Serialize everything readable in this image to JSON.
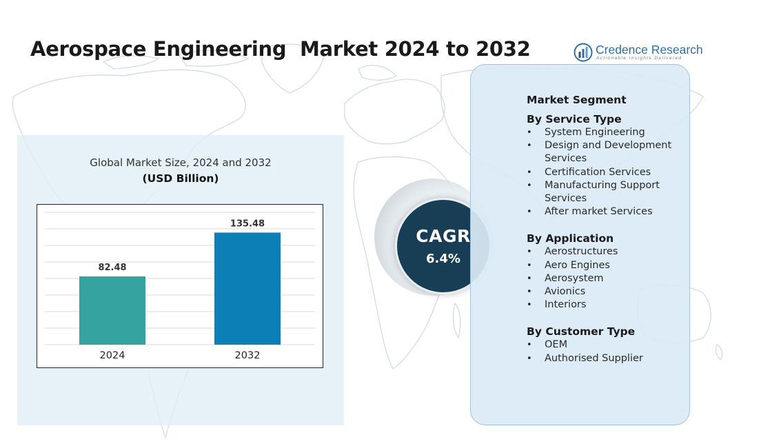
{
  "title": "Aerospace Engineering  Market 2024 to 2032",
  "logo": {
    "name": "Credence Research",
    "tagline": "Actionable Insights Delivered",
    "icon": "bar-chart-logo-icon"
  },
  "chart_data": {
    "type": "bar",
    "title": "Global Market Size, 2024 and 2032",
    "unit_label": "(USD Billion)",
    "categories": [
      "2024",
      "2032"
    ],
    "values": [
      82.48,
      135.48
    ],
    "value_labels": [
      "82.48",
      "135.48"
    ],
    "colors": [
      "#35a3a0",
      "#0b7fb6"
    ],
    "ylim": [
      0,
      160
    ],
    "grid": true,
    "legend": "none"
  },
  "cagr": {
    "label": "CAGR",
    "value": "6.4%"
  },
  "segments": {
    "heading": "Market Segment",
    "groups": [
      {
        "title": "By Service Type",
        "items": [
          "System Engineering",
          "Design and Development Services",
          "Certification Services",
          "Manufacturing Support Services",
          "After market Services"
        ]
      },
      {
        "title": "By Application",
        "items": [
          "Aerostructures",
          "Aero Engines",
          "Aerosystem",
          "Avionics",
          "Interiors"
        ]
      },
      {
        "title": "By Customer Type",
        "items": [
          "OEM",
          "Authorised Supplier"
        ]
      }
    ]
  },
  "colors": {
    "panel_bg": "#e2eef7",
    "segment_bg": "#daeaf5",
    "cagr_circle": "#173e54",
    "brand_blue": "#2b6fa8"
  }
}
